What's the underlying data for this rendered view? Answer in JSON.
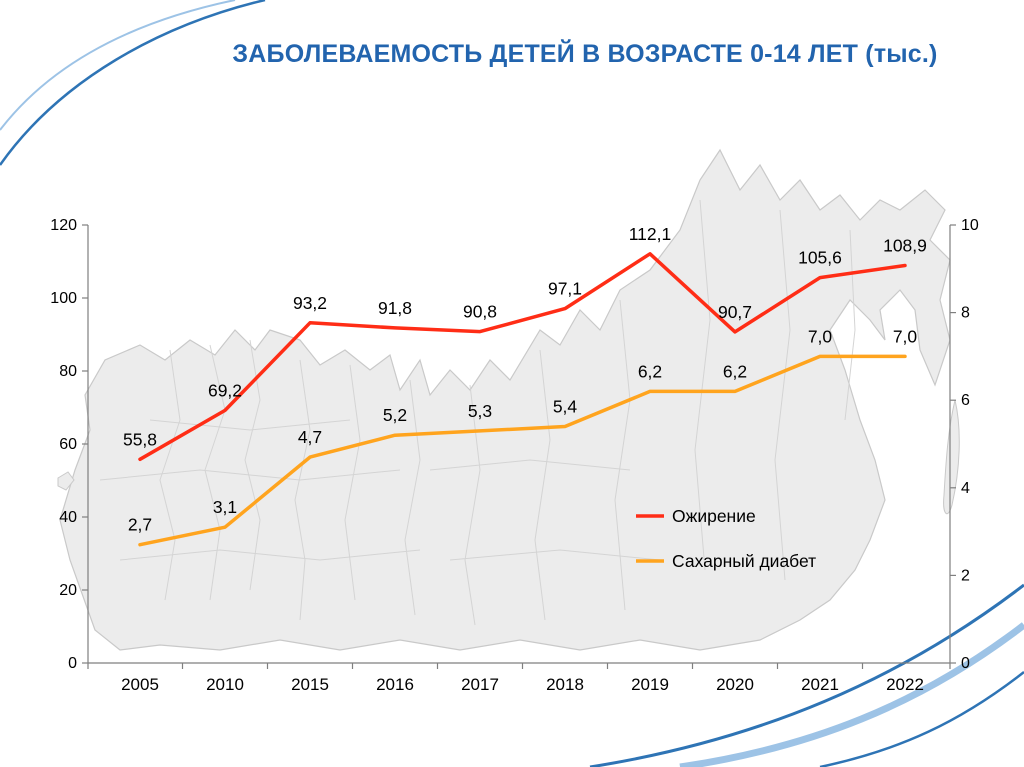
{
  "slide": {
    "title": "ЗАБОЛЕВАЕМОСТЬ ДЕТЕЙ В ВОЗРАСТЕ 0-14 ЛЕТ (тыс.)"
  },
  "colors": {
    "title": "#2264ae",
    "obesity_line": "#ff2d16",
    "diabetes_line": "#ffa41e",
    "decoration_dark_blue": "#2e74b5",
    "decoration_light_blue": "#9dc3e6",
    "axis": "#7f7f7f",
    "label_text": "#000000"
  },
  "chart_data": {
    "type": "line",
    "title": "ЗАБОЛЕВАЕМОСТЬ ДЕТЕЙ В ВОЗРАСТЕ 0-14 ЛЕТ (тыс.)",
    "categories": [
      "2005",
      "2010",
      "2015",
      "2016",
      "2017",
      "2018",
      "2019",
      "2020",
      "2021",
      "2022"
    ],
    "series": [
      {
        "name": "Ожирение",
        "color": "#ff2d16",
        "y_axis": "left",
        "values": [
          55.8,
          69.2,
          93.2,
          91.8,
          90.8,
          97.1,
          112.1,
          90.7,
          105.6,
          108.9
        ],
        "labels": [
          "55,8",
          "69,2",
          "93,2",
          "91,8",
          "90,8",
          "97,1",
          "112,1",
          "90,7",
          "105,6",
          "108,9"
        ]
      },
      {
        "name": "Сахарный диабет",
        "color": "#ffa41e",
        "y_axis": "right",
        "values": [
          2.7,
          3.1,
          4.7,
          5.2,
          5.3,
          5.4,
          6.2,
          6.2,
          7.0,
          7.0
        ],
        "labels": [
          "2,7",
          "3,1",
          "4,7",
          "5,2",
          "5,3",
          "5,4",
          "6,2",
          "6,2",
          "7,0",
          "7,0"
        ]
      }
    ],
    "left_axis": {
      "min": 0,
      "max": 120,
      "ticks": [
        0,
        20,
        40,
        60,
        80,
        100,
        120
      ]
    },
    "right_axis": {
      "min": 0,
      "max": 10,
      "ticks": [
        0,
        2,
        4,
        6,
        8,
        10
      ]
    },
    "grid": false,
    "legend_position": "inside-center-right",
    "background": "light grey map of Russia with region borders"
  }
}
